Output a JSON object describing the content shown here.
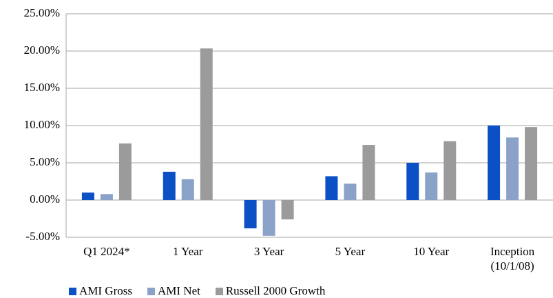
{
  "chart_data": {
    "type": "bar",
    "categories": [
      "Q1 2024*",
      "1 Year",
      "3 Year",
      "5 Year",
      "10 Year",
      "Inception (10/1/08)"
    ],
    "series": [
      {
        "name": "AMI Gross",
        "color": "#0b50c4",
        "values": [
          1.0,
          3.8,
          -3.8,
          3.2,
          5.0,
          10.0
        ]
      },
      {
        "name": "AMI Net",
        "color": "#8ba2c8",
        "values": [
          0.8,
          2.8,
          -4.8,
          2.2,
          3.7,
          8.4
        ]
      },
      {
        "name": "Russell 2000 Growth",
        "color": "#9b9b9b",
        "values": [
          7.6,
          20.35,
          -2.6,
          7.4,
          7.9,
          9.8
        ]
      }
    ],
    "ylim": [
      -5,
      25
    ],
    "yticks": [
      {
        "value": -5,
        "label": "-5.00%"
      },
      {
        "value": 0,
        "label": "0.00%"
      },
      {
        "value": 5,
        "label": "5.00%"
      },
      {
        "value": 10,
        "label": "10.00%"
      },
      {
        "value": 15,
        "label": "15.00%"
      },
      {
        "value": 20,
        "label": "20.00%"
      },
      {
        "value": 25,
        "label": "25.00%"
      }
    ],
    "grid": true,
    "legend": "bottom-left"
  }
}
